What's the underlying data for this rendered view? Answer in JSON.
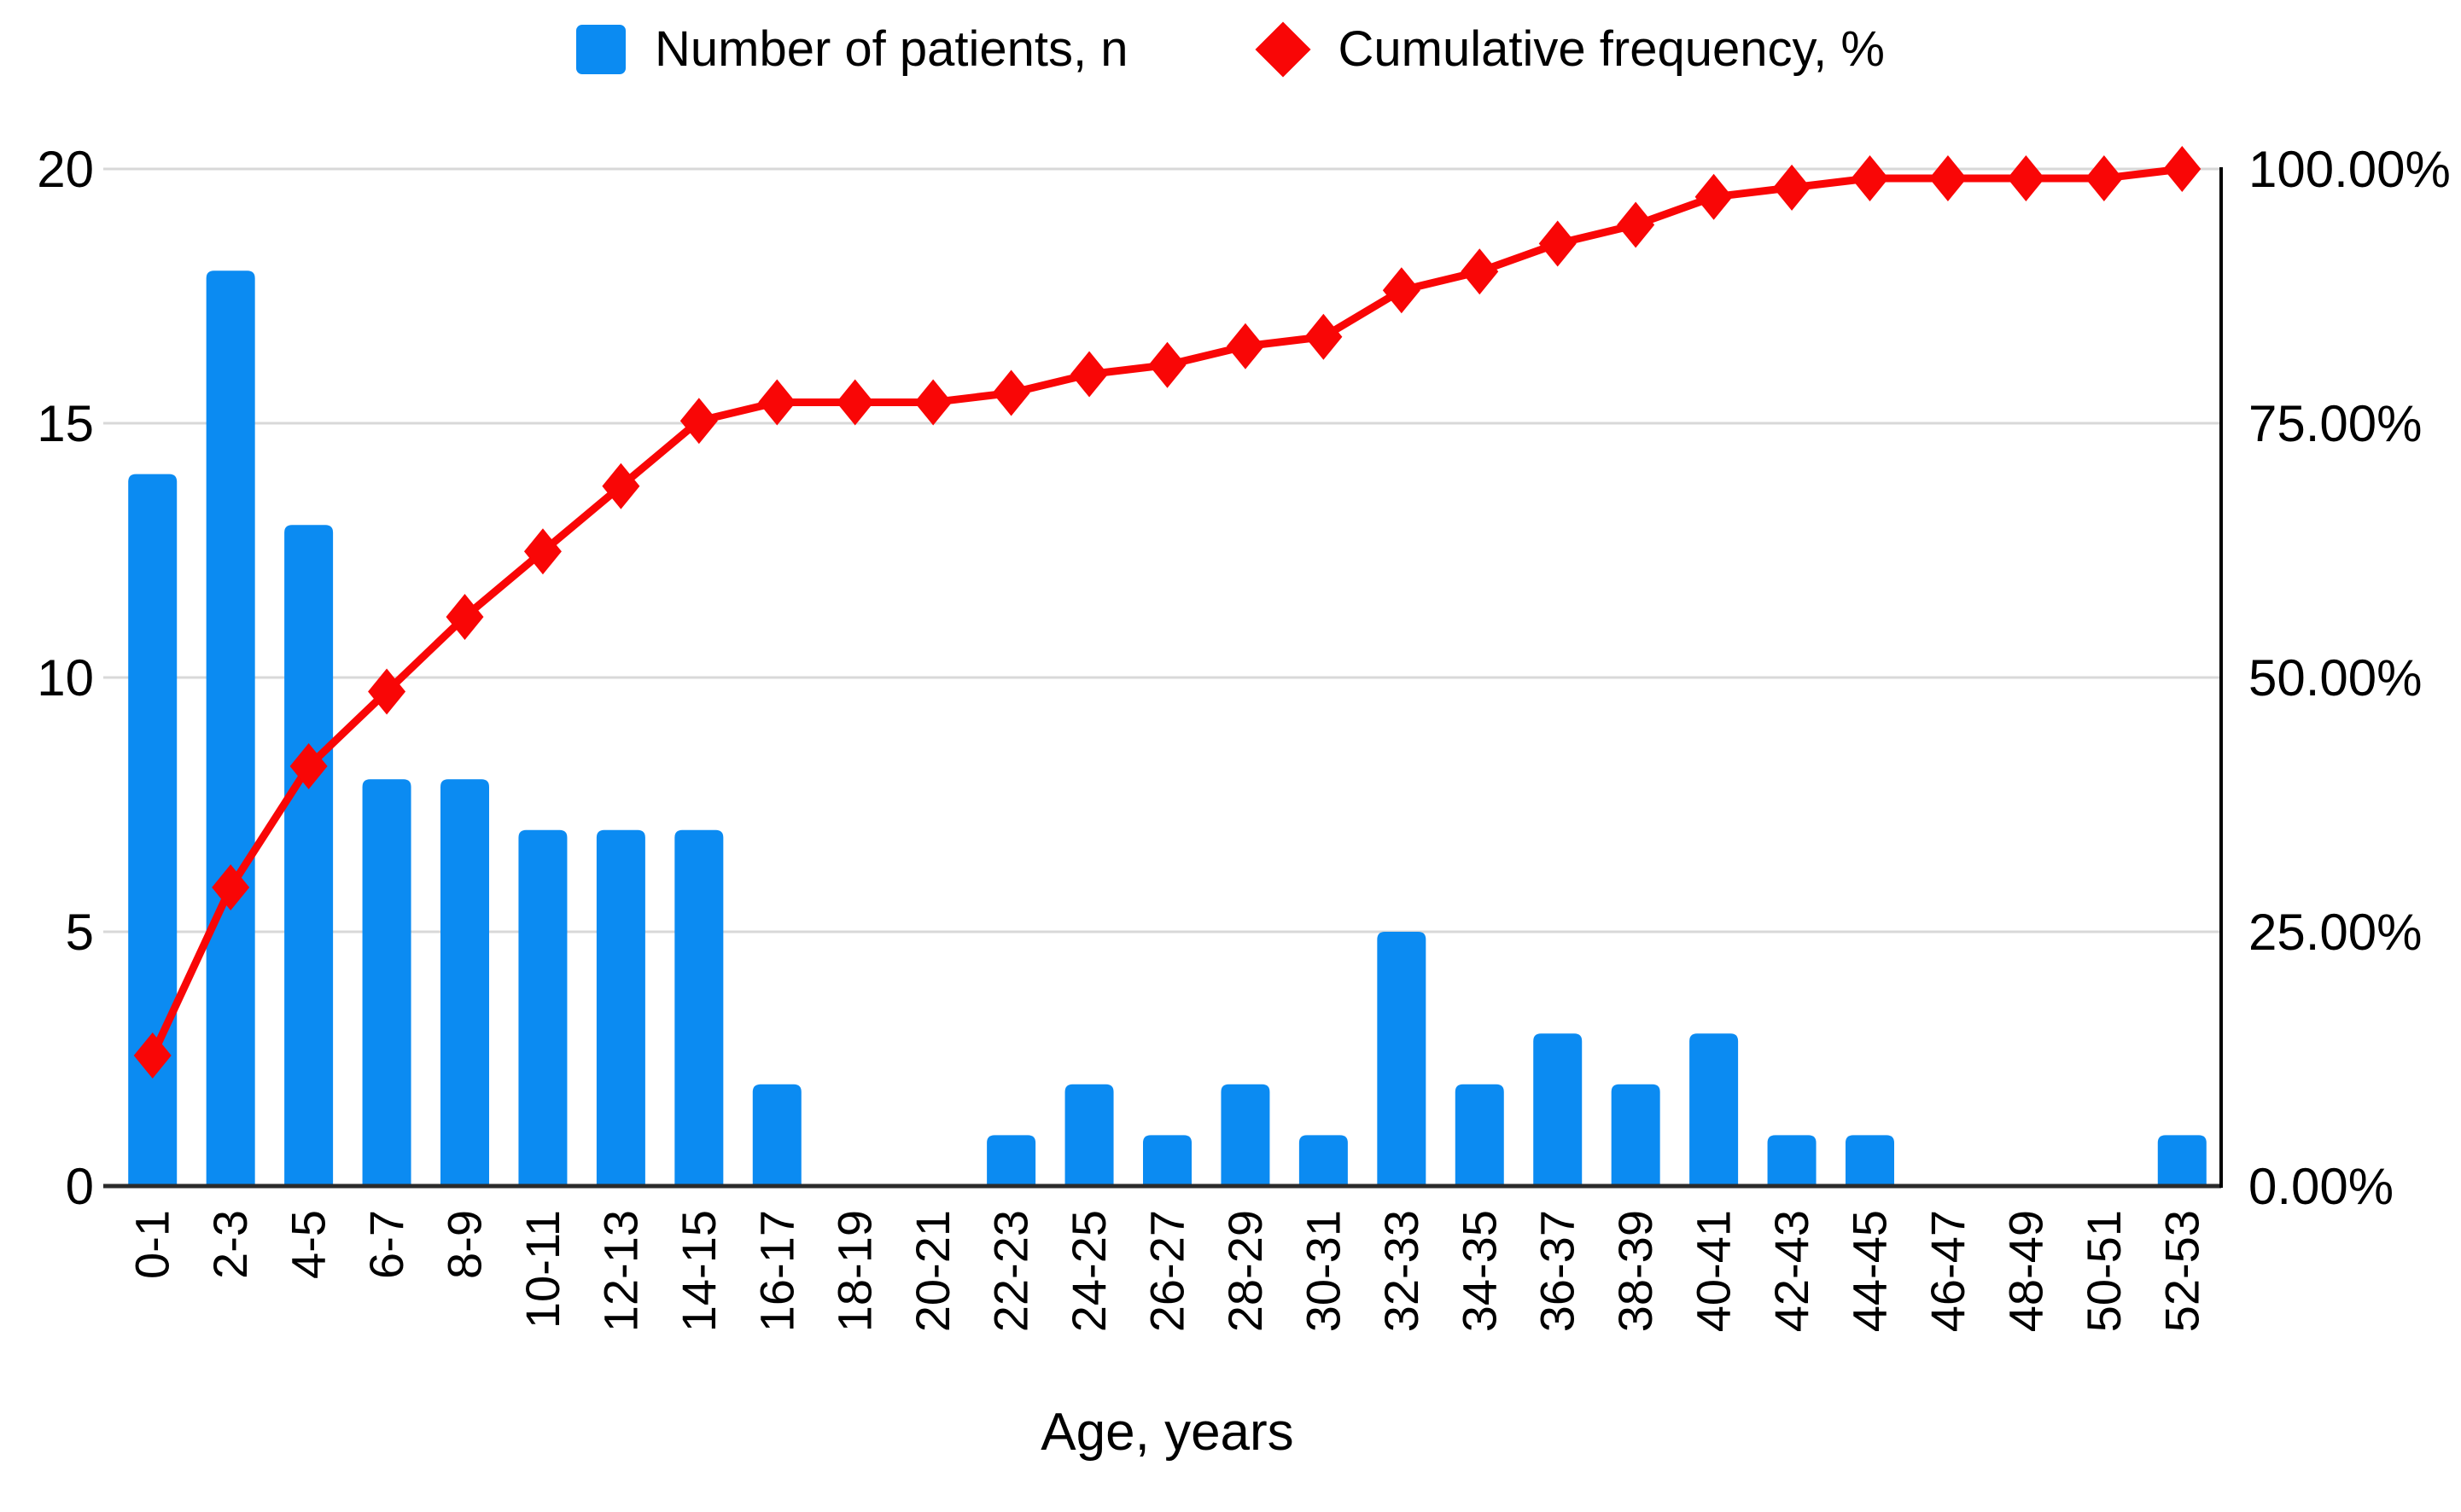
{
  "legend": [
    {
      "label": "Number of patients, n",
      "marker": "square",
      "color": "#0b8bf2"
    },
    {
      "label": "Cumulative frequency, %",
      "marker": "diamond",
      "color": "#f90606"
    }
  ],
  "chart_data": {
    "type": "pareto (bar + line)",
    "categories": [
      "0-1",
      "2-3",
      "4-5",
      "6-7",
      "8-9",
      "10-11",
      "12-13",
      "14-15",
      "16-17",
      "18-19",
      "20-21",
      "22-23",
      "24-25",
      "26-27",
      "28-29",
      "30-31",
      "32-33",
      "34-35",
      "36-37",
      "38-39",
      "40-41",
      "42-43",
      "44-45",
      "46-47",
      "48-49",
      "50-51",
      "52-53"
    ],
    "series": [
      {
        "name": "Number of patients, n",
        "type": "bar",
        "axis": "left",
        "color": "#0b8bf2",
        "values": [
          14,
          18,
          13,
          8,
          8,
          7,
          7,
          7,
          2,
          0,
          0,
          1,
          2,
          1,
          2,
          1,
          5,
          2,
          3,
          2,
          3,
          1,
          1,
          0,
          0,
          0,
          1
        ]
      },
      {
        "name": "Cumulative frequency, %",
        "type": "line",
        "axis": "right",
        "color": "#f90606",
        "marker": "diamond",
        "values": [
          12.84,
          29.36,
          41.28,
          48.62,
          55.96,
          62.39,
          68.81,
          75.23,
          77.06,
          77.06,
          77.06,
          77.98,
          79.82,
          80.73,
          82.57,
          83.49,
          88.07,
          89.91,
          92.66,
          94.5,
          97.25,
          98.17,
          99.08,
          99.08,
          99.08,
          99.08,
          100.0
        ]
      }
    ],
    "left_axis": {
      "min": 0,
      "max": 20,
      "ticks": [
        0,
        5,
        10,
        15,
        20
      ]
    },
    "right_axis": {
      "min": 0,
      "max": 100,
      "ticks": [
        0,
        25,
        50,
        75,
        100
      ],
      "tick_labels": [
        "0.00%",
        "25.00%",
        "50.00%",
        "75.00%",
        "100.00%"
      ]
    },
    "xlabel": "Age, years",
    "grid": true,
    "legend_position": "top"
  },
  "colors": {
    "bar": "#0b8bf2",
    "line": "#f90606",
    "grid": "#d8d8d8",
    "baseline": "#2b2b2b",
    "right_axis_line": "#000000",
    "text": "#000000",
    "background": "#ffffff"
  }
}
